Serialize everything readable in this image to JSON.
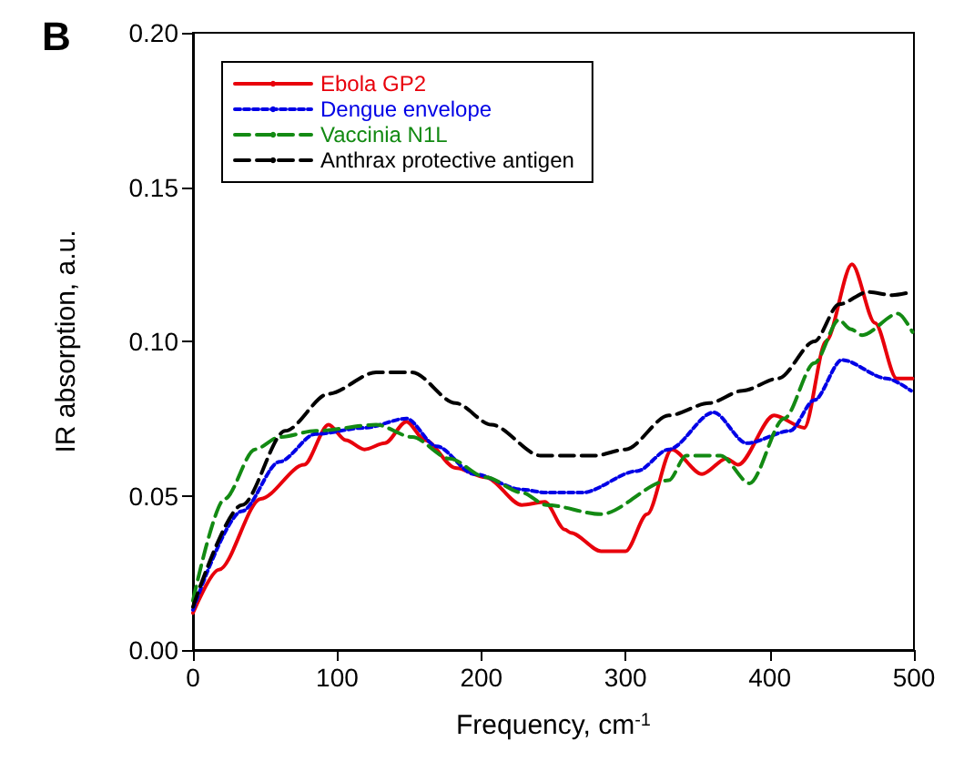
{
  "chart_data": {
    "type": "line",
    "title": "B",
    "xlabel": "Frequency, cm$^{-1}$",
    "ylabel": "IR absorption, a.u.",
    "xlim": [
      0,
      500
    ],
    "xticks": [
      0,
      100,
      200,
      300,
      400,
      500
    ],
    "ylim": [
      0,
      0.2
    ],
    "yticks": [
      {
        "value": 0,
        "label": "0.00"
      },
      {
        "value": 0.05,
        "label": "0.05"
      },
      {
        "value": 0.1,
        "label": "0.10"
      },
      {
        "value": 0.15,
        "label": "0.15"
      },
      {
        "value": 0.2,
        "label": "0.20"
      }
    ],
    "grid": false,
    "legend": "top left",
    "marker": "none",
    "series": [
      {
        "name": "Ebola GP2",
        "color": "#e8000b",
        "line_style": "solid",
        "x": [
          0,
          18,
          47,
          77,
          94,
          106,
          119,
          133,
          148,
          161,
          182,
          203,
          228,
          244,
          258,
          262,
          283,
          300,
          315,
          332,
          353,
          370,
          378,
          403,
          424,
          439,
          457,
          473,
          488,
          499
        ],
        "values": [
          0.012,
          0.026,
          0.049,
          0.06,
          0.073,
          0.068,
          0.065,
          0.067,
          0.074,
          0.068,
          0.059,
          0.056,
          0.047,
          0.048,
          0.039,
          0.038,
          0.032,
          0.032,
          0.044,
          0.065,
          0.057,
          0.062,
          0.06,
          0.076,
          0.072,
          0.1,
          0.125,
          0.106,
          0.088,
          0.088
        ]
      },
      {
        "name": "Dengue envelope",
        "color": "#0000e6",
        "line_style": "dotted",
        "x": [
          0,
          34,
          60,
          85,
          119,
          148,
          169,
          195,
          228,
          245,
          270,
          308,
          330,
          361,
          384,
          414,
          431,
          450,
          481,
          498
        ],
        "values": [
          0.013,
          0.045,
          0.061,
          0.07,
          0.072,
          0.075,
          0.066,
          0.057,
          0.052,
          0.051,
          0.051,
          0.058,
          0.065,
          0.077,
          0.067,
          0.071,
          0.081,
          0.094,
          0.088,
          0.084
        ]
      },
      {
        "name": "Vaccinia N1L",
        "color": "#138a13",
        "line_style": "dashed",
        "x": [
          0,
          22,
          43,
          60,
          85,
          127,
          152,
          178,
          203,
          228,
          245,
          283,
          330,
          342,
          366,
          386,
          410,
          431,
          448,
          456,
          464,
          489,
          499
        ],
        "values": [
          0.016,
          0.049,
          0.065,
          0.069,
          0.071,
          0.073,
          0.069,
          0.062,
          0.056,
          0.051,
          0.047,
          0.044,
          0.055,
          0.063,
          0.063,
          0.054,
          0.075,
          0.093,
          0.107,
          0.104,
          0.102,
          0.109,
          0.103
        ]
      },
      {
        "name": "Anthrax protective antigen",
        "color": "#000000",
        "line_style": "dashed",
        "x": [
          0,
          34,
          64,
          94,
          127,
          152,
          182,
          207,
          241,
          258,
          279,
          300,
          330,
          358,
          381,
          406,
          431,
          448,
          468,
          485,
          498
        ],
        "values": [
          0.014,
          0.047,
          0.071,
          0.083,
          0.09,
          0.09,
          0.08,
          0.073,
          0.063,
          0.063,
          0.063,
          0.065,
          0.076,
          0.08,
          0.084,
          0.088,
          0.1,
          0.112,
          0.116,
          0.115,
          0.116
        ]
      }
    ]
  }
}
